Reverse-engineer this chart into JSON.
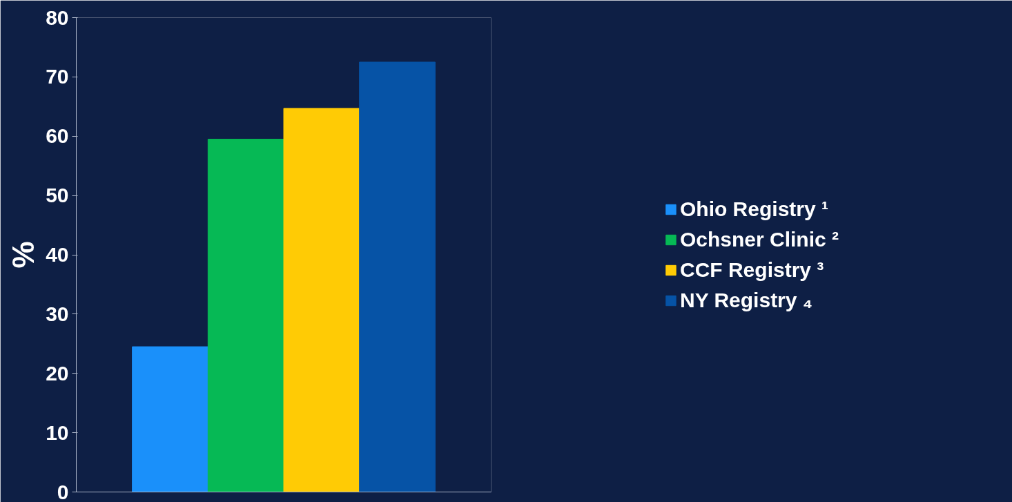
{
  "chart_data": {
    "type": "bar",
    "ylabel": "%",
    "categories": [
      null
    ],
    "series": [
      {
        "name": "Ohio Registry ¹",
        "color": "#1a90fa",
        "values": [
          24.5
        ]
      },
      {
        "name": "Ochsner Clinic ²",
        "color": "#06b955",
        "values": [
          59.5
        ]
      },
      {
        "name": "CCF Registry ³",
        "color": "#ffcb05",
        "values": [
          64.7
        ]
      },
      {
        "name": "NY Registry ₄",
        "color": "#0653a6",
        "values": [
          72.5
        ]
      }
    ],
    "ylim": [
      0,
      80
    ],
    "yticks": [
      0,
      10,
      20,
      30,
      40,
      50,
      60,
      70,
      80
    ],
    "grid": false,
    "legend": "right",
    "tick_labels": "y"
  }
}
